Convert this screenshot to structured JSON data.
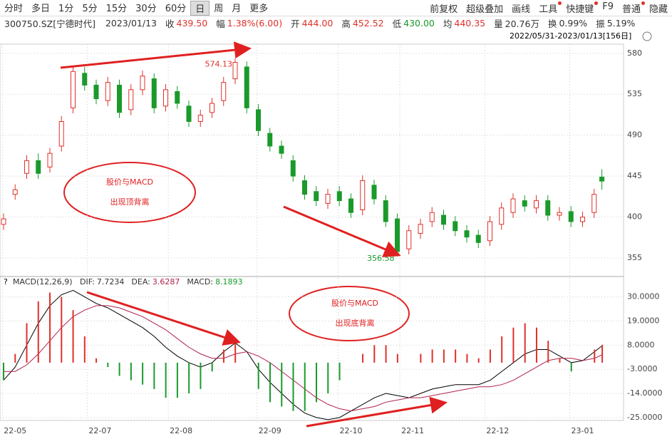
{
  "toolbar": {
    "periods": [
      "分时",
      "多日",
      "1分",
      "5分",
      "15分",
      "30分",
      "60分",
      "日",
      "周",
      "月",
      "更多"
    ],
    "selected": 7,
    "tools": [
      "前复权",
      "超级叠加",
      "画线",
      "工具",
      "快捷键",
      "F9",
      "普通",
      "隐藏"
    ]
  },
  "info": {
    "code": "300750.SZ[宁德时代]",
    "date": "2023/01/13",
    "items": [
      {
        "label": "收",
        "value": "439.50",
        "color": "#e0302a"
      },
      {
        "label": "幅",
        "value": "1.38%(6.00)",
        "color": "#e0302a"
      },
      {
        "label": "开",
        "value": "444.00",
        "color": "#e0302a"
      },
      {
        "label": "高",
        "value": "452.52",
        "color": "#e0302a"
      },
      {
        "label": "低",
        "value": "430.00",
        "color": "#1a9a2a"
      },
      {
        "label": "均",
        "value": "440.35",
        "color": "#e0302a"
      },
      {
        "label": "量",
        "value": "20.76万",
        "color": "#333"
      },
      {
        "label": "换",
        "value": "0.99%",
        "color": "#333"
      },
      {
        "label": "振",
        "value": "5.19%",
        "color": "#333"
      }
    ],
    "range": "2022/05/31-2023/01/13[156日]"
  },
  "chart_data": [
    {
      "type": "candlestick",
      "up_color": "#e0302a",
      "down_color": "#1a9a2a",
      "x": [
        0,
        3,
        6,
        9,
        12,
        15,
        18,
        21,
        24,
        27,
        30,
        33,
        36,
        39,
        42,
        45,
        48,
        51,
        54,
        57,
        60,
        63,
        66,
        69,
        72,
        75,
        78,
        81,
        84,
        87,
        90,
        93,
        96,
        99,
        102,
        105,
        108,
        111,
        114,
        117,
        120,
        123,
        126,
        129,
        132,
        135,
        138,
        141,
        144,
        147,
        150,
        153,
        155
      ],
      "open": [
        392,
        425,
        448,
        462,
        455,
        478,
        520,
        558,
        545,
        528,
        545,
        518,
        540,
        552,
        522,
        538,
        522,
        505,
        515,
        528,
        552,
        565,
        518,
        492,
        478,
        462,
        440,
        428,
        415,
        428,
        420,
        408,
        435,
        418,
        398,
        365,
        382,
        395,
        402,
        395,
        385,
        380,
        374,
        392,
        405,
        418,
        410,
        418,
        402,
        406,
        395,
        405,
        444
      ],
      "high": [
        404,
        436,
        468,
        470,
        476,
        511,
        566,
        565,
        551,
        554,
        551,
        546,
        561,
        558,
        546,
        544,
        528,
        518,
        531,
        554,
        574.13,
        571,
        524,
        498,
        484,
        468,
        446,
        434,
        431,
        434,
        426,
        446,
        441,
        424,
        404,
        391,
        398,
        411,
        408,
        401,
        391,
        386,
        401,
        416,
        426,
        424,
        424,
        424,
        411,
        412,
        406,
        431,
        452.52
      ],
      "low": [
        386,
        419,
        442,
        442,
        449,
        472,
        514,
        539,
        524,
        522,
        509,
        512,
        534,
        514,
        516,
        519,
        499,
        499,
        509,
        522,
        546,
        514,
        489,
        472,
        464,
        439,
        419,
        412,
        409,
        412,
        399,
        402,
        414,
        389,
        356.58,
        359,
        376,
        389,
        386,
        379,
        372,
        366,
        368,
        386,
        399,
        406,
        404,
        396,
        396,
        389,
        389,
        399,
        430
      ],
      "close": [
        398,
        430,
        462,
        448,
        470,
        505,
        560,
        545,
        530,
        548,
        515,
        540,
        555,
        520,
        540,
        525,
        505,
        512,
        525,
        548,
        570,
        520,
        495,
        478,
        470,
        445,
        425,
        418,
        425,
        418,
        405,
        440,
        420,
        395,
        362,
        385,
        392,
        405,
        392,
        385,
        378,
        372,
        395,
        410,
        420,
        412,
        418,
        402,
        405,
        395,
        400,
        425,
        439.5
      ],
      "xlim": [
        0,
        156
      ],
      "ylim": [
        337,
        590
      ],
      "yticks": [
        580,
        535,
        490,
        445,
        400,
        355
      ],
      "xticks": [
        {
          "value": 3,
          "label": "22-05"
        },
        {
          "value": 25,
          "label": "22-07"
        },
        {
          "value": 46,
          "label": "22-08"
        },
        {
          "value": 69,
          "label": "22-09"
        },
        {
          "value": 90,
          "label": "22-10"
        },
        {
          "value": 106,
          "label": "22-11"
        },
        {
          "value": 128,
          "label": "22-12"
        },
        {
          "value": 150,
          "label": "23-01"
        }
      ],
      "high_label": 574.13,
      "low_label": 356.58,
      "note": [
        "股价与MACD",
        "出现顶背离"
      ]
    },
    {
      "type": "macd",
      "title": "MACD(12,26,9)",
      "x": [
        0,
        3,
        6,
        9,
        12,
        15,
        18,
        21,
        24,
        27,
        30,
        33,
        36,
        39,
        42,
        45,
        48,
        51,
        54,
        57,
        60,
        63,
        66,
        69,
        72,
        75,
        78,
        81,
        84,
        87,
        90,
        93,
        96,
        99,
        102,
        105,
        108,
        111,
        114,
        117,
        120,
        123,
        126,
        129,
        132,
        135,
        138,
        141,
        144,
        147,
        150,
        153,
        155
      ],
      "series": [
        {
          "name": "DIF:",
          "color": "#000000",
          "values": [
            -8,
            -2,
            8,
            18,
            26,
            31,
            33,
            30,
            27,
            25,
            22,
            19,
            16,
            12,
            7,
            3,
            0,
            -2,
            0,
            5,
            9,
            5,
            -3,
            -9,
            -14,
            -19,
            -23,
            -25,
            -26,
            -25,
            -22,
            -19,
            -16,
            -14,
            -15,
            -16,
            -14,
            -12,
            -11,
            -10,
            -10,
            -10,
            -8,
            -4,
            0,
            4,
            6,
            6,
            3,
            0,
            1,
            5,
            7.7234
          ]
        },
        {
          "name": "DEA:",
          "color": "#b0204a",
          "values": [
            -4,
            -4,
            -1,
            4,
            10,
            16,
            21,
            24,
            26,
            26,
            25,
            23,
            21,
            18,
            15,
            11,
            7,
            4,
            2,
            2,
            4,
            5,
            3,
            0,
            -4,
            -8,
            -12,
            -16,
            -19,
            -21,
            -22,
            -21,
            -20,
            -18,
            -17,
            -16,
            -16,
            -15,
            -14,
            -13,
            -12,
            -11,
            -11,
            -10,
            -8,
            -5,
            -2,
            1,
            2,
            2,
            1,
            2,
            3.6287
          ]
        },
        {
          "name": "MACD:",
          "color": "#1a9a2a",
          "up_color": "#e0302a",
          "values": [
            -8,
            4,
            18,
            28,
            32,
            30,
            24,
            12,
            2,
            -2,
            -6,
            -8,
            -10,
            -12,
            -16,
            -16,
            -14,
            -12,
            -4,
            6,
            10,
            0,
            -12,
            -18,
            -20,
            -22,
            -22,
            -18,
            -14,
            -8,
            0,
            4,
            8,
            8,
            4,
            0,
            4,
            6,
            6,
            6,
            4,
            2,
            6,
            12,
            16,
            18,
            16,
            10,
            2,
            -4,
            0,
            6,
            8.1893
          ]
        }
      ],
      "ylim": [
        -27,
        38
      ],
      "yticks": [
        {
          "value": 30,
          "label": "30.0000"
        },
        {
          "value": 19,
          "label": "19.0000"
        },
        {
          "value": 8,
          "label": "8.0000"
        },
        {
          "value": -3,
          "label": "-3.0000"
        },
        {
          "value": -14,
          "label": "-14.0000"
        },
        {
          "value": -25,
          "label": "-25.0000"
        }
      ],
      "note": [
        "股价与MACD",
        "出现底背离"
      ]
    }
  ]
}
